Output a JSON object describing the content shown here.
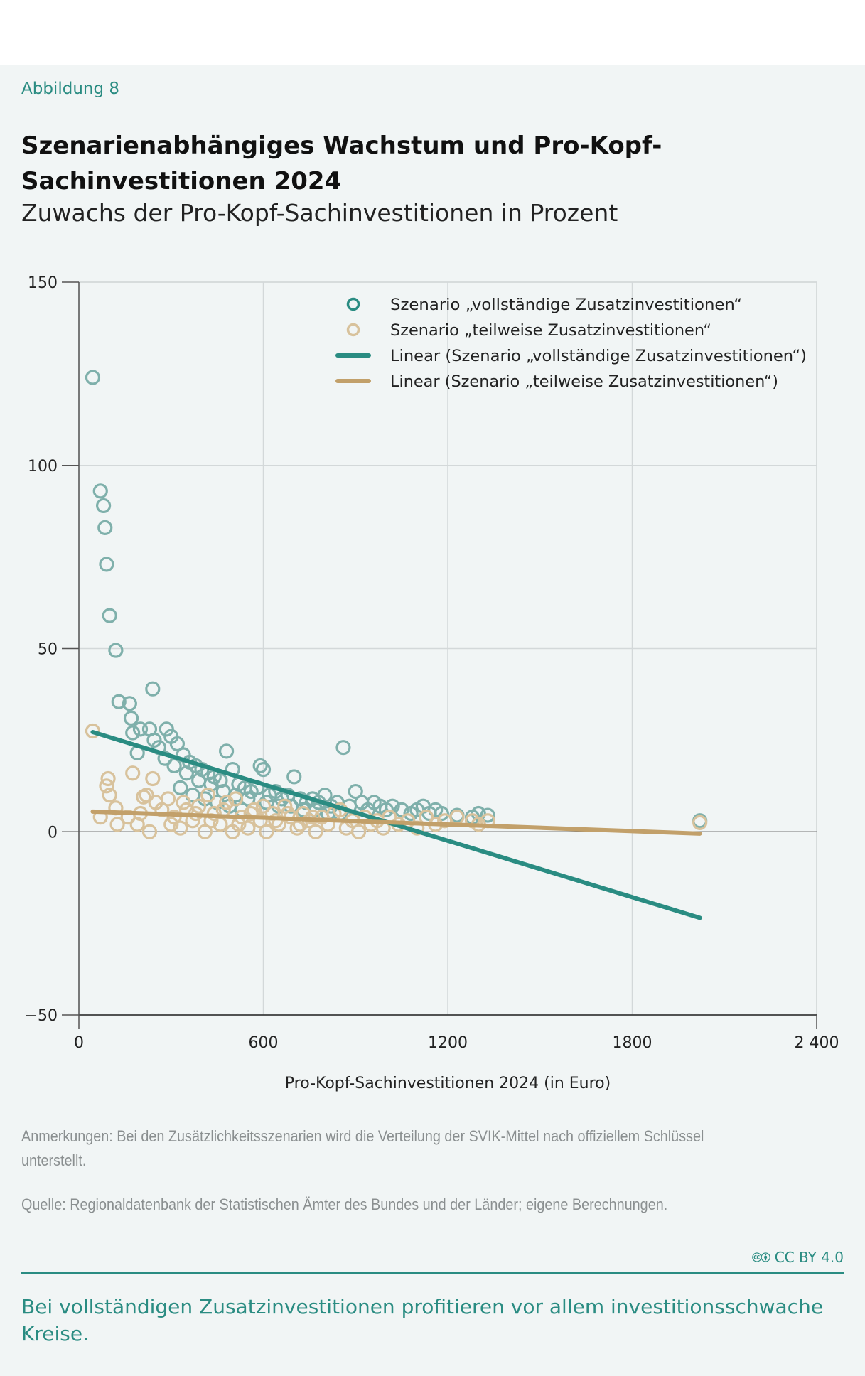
{
  "figure_label": "Abbildung 8",
  "title": "Szenarienabhängiges Wachstum und Pro-Kopf-Sachinvestitionen 2024",
  "subtitle": "Zuwachs der Pro-Kopf-Sachinvestitionen in Prozent",
  "notes": "Anmerkungen: Bei den Zusätzlichkeitsszenarien wird die Verteilung der SVIK-Mittel nach offiziellem Schlüssel unterstellt.",
  "source": "Quelle: Regionaldatenbank der Statistischen Ämter des Bundes und der Länder; eigene Berechnungen.",
  "license": "CC BY 4.0",
  "conclusion": "Bei vollständigen Zusatzinvestitionen profitieren vor allem investitionsschwache Kreise.",
  "colors": {
    "teal": "#2a8c82",
    "teal_points": "#7fb0ab",
    "tan": "#c2a06a",
    "tan_points": "#d8c29c",
    "text_accent": "#2a8c82"
  },
  "chart_data": {
    "type": "scatter",
    "xlabel": "Pro-Kopf-Sachinvestitionen 2024 (in Euro)",
    "ylabel": "Zuwachs der Pro-Kopf-Sachinvestitionen in Prozent",
    "xlim": [
      0,
      2400
    ],
    "ylim": [
      -50,
      150
    ],
    "xticks": [
      0,
      600,
      1200,
      1800,
      2400
    ],
    "xtick_labels": [
      "0",
      "600",
      "1200",
      "1800",
      "2 400"
    ],
    "yticks": [
      -50,
      0,
      50,
      100,
      150
    ],
    "ytick_labels": [
      "−50",
      "0",
      "50",
      "100",
      "150"
    ],
    "grid": true,
    "legend_position": "top-right",
    "series": [
      {
        "name": "Szenario „vollständige Zusatzinvestitionen“",
        "kind": "points",
        "color_key": "teal",
        "points": [
          [
            45,
            124
          ],
          [
            70,
            93
          ],
          [
            80,
            89
          ],
          [
            85,
            83
          ],
          [
            90,
            73
          ],
          [
            100,
            59
          ],
          [
            120,
            49.5
          ],
          [
            130,
            35.5
          ],
          [
            165,
            35
          ],
          [
            240,
            39
          ],
          [
            170,
            31
          ],
          [
            175,
            27
          ],
          [
            190,
            21.5
          ],
          [
            200,
            28
          ],
          [
            230,
            28
          ],
          [
            245,
            25
          ],
          [
            260,
            23
          ],
          [
            285,
            28
          ],
          [
            300,
            26
          ],
          [
            320,
            24
          ],
          [
            340,
            21
          ],
          [
            360,
            19
          ],
          [
            380,
            18
          ],
          [
            400,
            17
          ],
          [
            420,
            16
          ],
          [
            440,
            15
          ],
          [
            460,
            14
          ],
          [
            480,
            22
          ],
          [
            500,
            17
          ],
          [
            520,
            13
          ],
          [
            540,
            12
          ],
          [
            560,
            11
          ],
          [
            580,
            12
          ],
          [
            590,
            18
          ],
          [
            600,
            17
          ],
          [
            620,
            10
          ],
          [
            640,
            11
          ],
          [
            660,
            9
          ],
          [
            680,
            10
          ],
          [
            700,
            15
          ],
          [
            720,
            9
          ],
          [
            740,
            8
          ],
          [
            760,
            9
          ],
          [
            780,
            8
          ],
          [
            800,
            10
          ],
          [
            820,
            7
          ],
          [
            840,
            8
          ],
          [
            860,
            23
          ],
          [
            880,
            7
          ],
          [
            900,
            11
          ],
          [
            920,
            8
          ],
          [
            940,
            6
          ],
          [
            960,
            8
          ],
          [
            980,
            7
          ],
          [
            1000,
            6
          ],
          [
            1020,
            7
          ],
          [
            1050,
            6
          ],
          [
            1080,
            5
          ],
          [
            1100,
            6
          ],
          [
            1120,
            7
          ],
          [
            1140,
            5
          ],
          [
            1160,
            6
          ],
          [
            1180,
            5
          ],
          [
            1230,
            4.5
          ],
          [
            1280,
            4
          ],
          [
            1300,
            5
          ],
          [
            1330,
            4.5
          ],
          [
            2020,
            3
          ],
          [
            280,
            20
          ],
          [
            310,
            18
          ],
          [
            350,
            16
          ],
          [
            390,
            14
          ],
          [
            430,
            13
          ],
          [
            470,
            11
          ],
          [
            510,
            10
          ],
          [
            550,
            9
          ],
          [
            610,
            8
          ],
          [
            650,
            7
          ],
          [
            690,
            7
          ],
          [
            730,
            6
          ],
          [
            770,
            6
          ],
          [
            810,
            5
          ],
          [
            850,
            5
          ],
          [
            330,
            12
          ],
          [
            370,
            10
          ],
          [
            410,
            9
          ],
          [
            450,
            8
          ],
          [
            490,
            7
          ],
          [
            530,
            6
          ]
        ]
      },
      {
        "name": "Szenario „teilweise Zusatzinvestitionen“",
        "kind": "points",
        "color_key": "tan",
        "points": [
          [
            45,
            27.5
          ],
          [
            70,
            4
          ],
          [
            90,
            12.5
          ],
          [
            95,
            14.5
          ],
          [
            100,
            10
          ],
          [
            120,
            6.5
          ],
          [
            125,
            2
          ],
          [
            175,
            16
          ],
          [
            210,
            9.5
          ],
          [
            240,
            14.5
          ],
          [
            220,
            10
          ],
          [
            190,
            2
          ],
          [
            230,
            0
          ],
          [
            160,
            4
          ],
          [
            200,
            5
          ],
          [
            250,
            8
          ],
          [
            270,
            6
          ],
          [
            290,
            9
          ],
          [
            310,
            4
          ],
          [
            330,
            1
          ],
          [
            350,
            6
          ],
          [
            370,
            3
          ],
          [
            390,
            7
          ],
          [
            410,
            0
          ],
          [
            420,
            10
          ],
          [
            440,
            5
          ],
          [
            460,
            2
          ],
          [
            480,
            8
          ],
          [
            500,
            0
          ],
          [
            510,
            9
          ],
          [
            530,
            4
          ],
          [
            550,
            1
          ],
          [
            570,
            6
          ],
          [
            590,
            3
          ],
          [
            610,
            0
          ],
          [
            630,
            5
          ],
          [
            650,
            2
          ],
          [
            670,
            7
          ],
          [
            690,
            4
          ],
          [
            710,
            1
          ],
          [
            730,
            5
          ],
          [
            750,
            3
          ],
          [
            770,
            0
          ],
          [
            790,
            4
          ],
          [
            810,
            2
          ],
          [
            830,
            5
          ],
          [
            850,
            6
          ],
          [
            870,
            1
          ],
          [
            890,
            3
          ],
          [
            910,
            0
          ],
          [
            930,
            4
          ],
          [
            950,
            2
          ],
          [
            970,
            3
          ],
          [
            990,
            1
          ],
          [
            1010,
            4
          ],
          [
            1040,
            2
          ],
          [
            1070,
            3
          ],
          [
            1100,
            1
          ],
          [
            1130,
            4
          ],
          [
            1160,
            2
          ],
          [
            1190,
            3
          ],
          [
            1230,
            4
          ],
          [
            1280,
            3
          ],
          [
            1300,
            2
          ],
          [
            1330,
            3
          ],
          [
            2020,
            2.5
          ],
          [
            300,
            2
          ],
          [
            340,
            8
          ],
          [
            380,
            5
          ],
          [
            430,
            3
          ],
          [
            470,
            6
          ],
          [
            520,
            2
          ],
          [
            560,
            5
          ],
          [
            600,
            7
          ],
          [
            640,
            3
          ],
          [
            680,
            5
          ],
          [
            720,
            2
          ],
          [
            760,
            4
          ]
        ]
      },
      {
        "name": "Linear (Szenario „vollständige Zusatzinvestitionen“)",
        "kind": "line",
        "color_key": "teal",
        "points": [
          [
            45,
            27.2
          ],
          [
            2020,
            -23.5
          ]
        ]
      },
      {
        "name": "Linear (Szenario „teilweise Zusatzinvestitionen“)",
        "kind": "line",
        "color_key": "tan",
        "points": [
          [
            45,
            5.5
          ],
          [
            2020,
            -0.5
          ]
        ]
      }
    ]
  }
}
